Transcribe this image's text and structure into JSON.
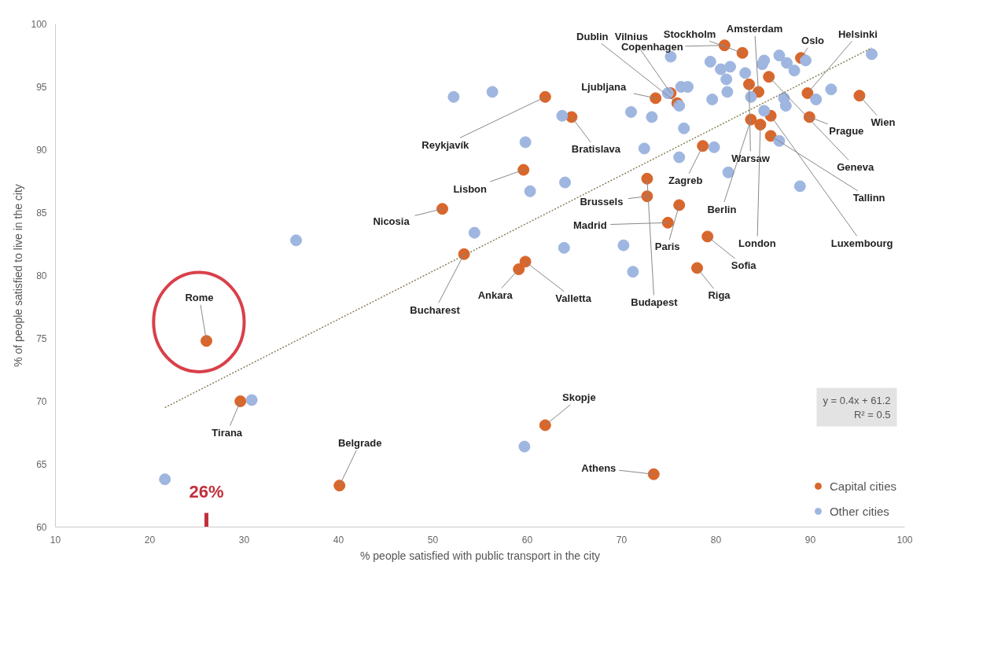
{
  "chart_data": {
    "type": "scatter",
    "xlabel": "% people satisfied with public transport in the city",
    "ylabel": "% of people satisfied to live in the city",
    "xlim": [
      10,
      100
    ],
    "ylim": [
      60,
      100
    ],
    "xticks": [
      10,
      20,
      30,
      40,
      50,
      60,
      70,
      80,
      90,
      100
    ],
    "yticks": [
      60,
      65,
      70,
      75,
      80,
      85,
      90,
      95,
      100
    ],
    "grid": false,
    "legend": "bottom right",
    "marker": "circle",
    "series": [
      {
        "name": "Capital cities",
        "color": "#d9662b",
        "x": [
          26.0,
          29.6,
          40.1,
          61.9,
          73.4,
          53.3,
          51.0,
          59.1,
          59.8,
          59.6,
          61.9,
          64.7,
          72.7,
          72.7,
          74.9,
          76.1,
          79.1,
          78.0,
          78.6,
          73.6,
          75.2,
          75.9,
          80.9,
          82.8,
          84.5,
          89.0,
          89.7,
          95.2,
          89.9,
          85.6,
          83.5,
          85.8,
          83.7,
          84.7,
          85.8
        ],
        "values": [
          74.8,
          70.0,
          63.3,
          68.1,
          64.2,
          81.7,
          85.3,
          80.5,
          81.1,
          88.4,
          94.2,
          92.6,
          86.3,
          87.7,
          84.2,
          85.6,
          83.1,
          80.6,
          90.3,
          94.1,
          94.5,
          93.7,
          98.3,
          97.7,
          94.6,
          97.3,
          94.5,
          94.3,
          92.6,
          95.8,
          95.2,
          91.1,
          92.4,
          92.0,
          92.7
        ]
      },
      {
        "name": "Other cities",
        "color": "#9fb6e0",
        "x": [
          21.6,
          30.8,
          35.5,
          54.4,
          59.7,
          52.2,
          56.3,
          59.8,
          60.3,
          63.7,
          64.0,
          63.9,
          70.2,
          71.2,
          71.0,
          72.4,
          73.2,
          76.6,
          79.6,
          75.2,
          76.3,
          77.0,
          76.1,
          74.9,
          79.4,
          80.5,
          81.5,
          81.1,
          81.2,
          83.1,
          84.9,
          85.1,
          86.7,
          87.5,
          88.3,
          89.5,
          96.5,
          92.2,
          90.6,
          83.7,
          87.2,
          87.4,
          85.1,
          88.9,
          81.3,
          79.8,
          76.1,
          86.7
        ],
        "values": [
          63.8,
          70.1,
          82.8,
          83.4,
          66.4,
          94.2,
          94.6,
          90.6,
          86.7,
          92.7,
          87.4,
          82.2,
          82.4,
          80.3,
          93.0,
          90.1,
          92.6,
          91.7,
          94.0,
          97.4,
          95.0,
          95.0,
          93.5,
          94.5,
          97.0,
          96.4,
          96.6,
          95.6,
          94.6,
          96.1,
          96.8,
          97.1,
          97.5,
          96.9,
          96.3,
          97.1,
          97.6,
          94.8,
          94.0,
          94.2,
          94.1,
          93.5,
          93.1,
          87.1,
          88.2,
          90.2,
          89.4,
          90.7
        ]
      },
      {
        "type": "line",
        "color": "#8a7f5a",
        "line_style": "dotted",
        "marker": "none",
        "x": [
          21.6,
          96.5
        ],
        "values": [
          69.5,
          98.1
        ]
      }
    ],
    "annotations": [
      "y = 0.4x + 61.2\nR² = 0.5",
      {
        "text": "Rome",
        "x": 26.0,
        "y": 74.8
      },
      {
        "text": "Tirana",
        "x": 29.6,
        "y": 70.0
      },
      {
        "text": "Belgrade",
        "x": 40.1,
        "y": 63.3
      },
      {
        "text": "Skopje",
        "x": 61.9,
        "y": 68.1
      },
      {
        "text": "Athens",
        "x": 73.4,
        "y": 64.2
      },
      {
        "text": "Bucharest",
        "x": 53.3,
        "y": 81.7
      },
      {
        "text": "Nicosia",
        "x": 51.0,
        "y": 85.3
      },
      {
        "text": "Ankara",
        "x": 59.1,
        "y": 80.5
      },
      {
        "text": "Valletta",
        "x": 59.8,
        "y": 81.1
      },
      {
        "text": "Lisbon",
        "x": 59.6,
        "y": 88.4
      },
      {
        "text": "Reykjavík",
        "x": 61.9,
        "y": 94.2
      },
      {
        "text": "Bratislava",
        "x": 64.7,
        "y": 92.6
      },
      {
        "text": "Brussels",
        "x": 72.7,
        "y": 86.3
      },
      {
        "text": "Budapest",
        "x": 72.7,
        "y": 87.7
      },
      {
        "text": "Madrid",
        "x": 74.9,
        "y": 84.2
      },
      {
        "text": "Paris",
        "x": 76.1,
        "y": 85.6
      },
      {
        "text": "Sofia",
        "x": 79.1,
        "y": 83.1
      },
      {
        "text": "Riga",
        "x": 78.0,
        "y": 80.6
      },
      {
        "text": "Zagreb",
        "x": 78.6,
        "y": 90.3
      },
      {
        "text": "Ljubljana",
        "x": 73.6,
        "y": 94.1
      },
      {
        "text": "Vilnius",
        "x": 75.2,
        "y": 94.5
      },
      {
        "text": "Dublin",
        "x": 75.9,
        "y": 93.7
      },
      {
        "text": "Copenhagen",
        "x": 80.9,
        "y": 98.3
      },
      {
        "text": "Stockholm",
        "x": 82.8,
        "y": 97.7
      },
      {
        "text": "Amsterdam",
        "x": 84.5,
        "y": 94.6
      },
      {
        "text": "Oslo",
        "x": 89.0,
        "y": 97.3
      },
      {
        "text": "Helsinki",
        "x": 89.7,
        "y": 94.5
      },
      {
        "text": "Wien",
        "x": 95.2,
        "y": 94.3
      },
      {
        "text": "Prague",
        "x": 89.9,
        "y": 92.6
      },
      {
        "text": "Geneva",
        "x": 85.6,
        "y": 95.8
      },
      {
        "text": "Warsaw",
        "x": 83.5,
        "y": 95.2
      },
      {
        "text": "Tallinn",
        "x": 85.8,
        "y": 91.1
      },
      {
        "text": "Berlin",
        "x": 83.7,
        "y": 92.4
      },
      {
        "text": "London",
        "x": 84.7,
        "y": 92.0
      },
      {
        "text": "Luxembourg",
        "x": 85.8,
        "y": 92.7
      }
    ],
    "ref_lines": [
      {
        "axis": "x",
        "value": 26,
        "label": "26%",
        "color": "#c0303a"
      }
    ]
  }
}
